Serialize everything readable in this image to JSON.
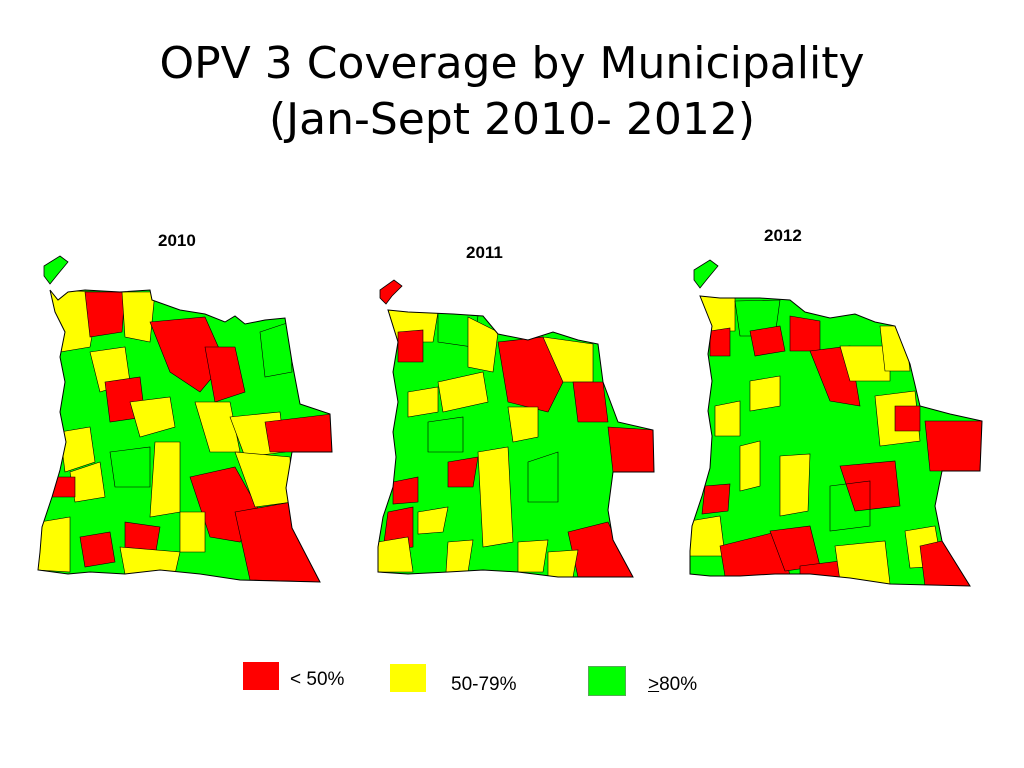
{
  "title": {
    "line1": "OPV 3 Coverage by Municipality",
    "line2": "(Jan-Sept 2010- 2012)"
  },
  "maps": [
    {
      "year": "2010"
    },
    {
      "year": "2011"
    },
    {
      "year": "2012"
    }
  ],
  "legend": {
    "items": [
      {
        "label": "< 50%",
        "color": "#ff0000"
      },
      {
        "label": "50-79%",
        "color": "#ffff00"
      },
      {
        "label_symbol": ">",
        "label_rest": "80%",
        "color": "#00ff00"
      }
    ]
  },
  "colors": {
    "low": "#ff0000",
    "mid": "#ffff00",
    "high": "#00ff00",
    "border": "#000000"
  }
}
